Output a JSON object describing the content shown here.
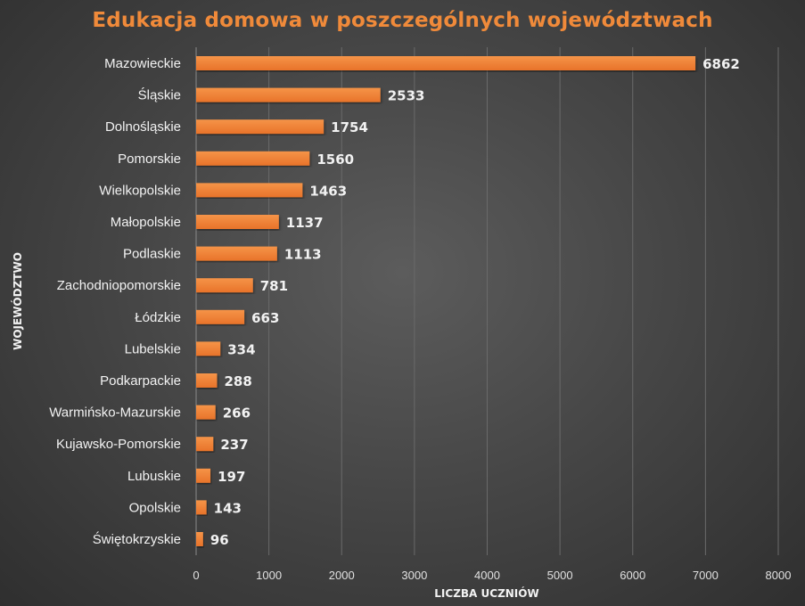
{
  "chart_data": {
    "type": "bar",
    "orientation": "horizontal",
    "title": "Edukacja domowa w poszczególnych województwach",
    "xlabel": "LICZBA UCZNIÓW",
    "ylabel": "WOJEWÓDZTWO",
    "xlim": [
      0,
      8000
    ],
    "xticks": [
      0,
      1000,
      2000,
      3000,
      4000,
      5000,
      6000,
      7000,
      8000
    ],
    "grid": true,
    "bar_color": "#f0803a",
    "title_color": "#f08a3a",
    "categories": [
      "Mazowieckie",
      "Śląskie",
      "Dolnośląskie",
      "Pomorskie",
      "Wielkopolskie",
      "Małopolskie",
      "Podlaskie",
      "Zachodniopomorskie",
      "Łódzkie",
      "Lubelskie",
      "Podkarpackie",
      "Warmińsko-Mazurskie",
      "Kujawsko-Pomorskie",
      "Lubuskie",
      "Opolskie",
      "Świętokrzyskie"
    ],
    "values": [
      6862,
      2533,
      1754,
      1560,
      1463,
      1137,
      1113,
      781,
      663,
      334,
      288,
      266,
      237,
      197,
      143,
      96
    ]
  }
}
